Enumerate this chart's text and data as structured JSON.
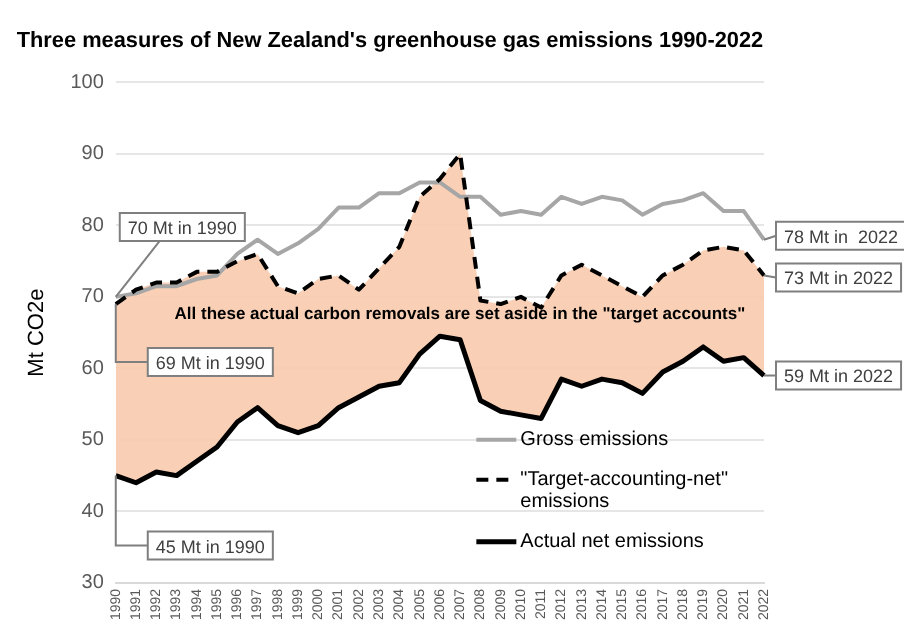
{
  "chart_data": {
    "type": "line",
    "title": "Three measures of New Zealand's greenhouse gas emissions 1990-2022",
    "ylabel": "Mt CO2e",
    "categories": [
      "1990",
      "1991",
      "1992",
      "1993",
      "1994",
      "1995",
      "1996",
      "1997",
      "1998",
      "1999",
      "2000",
      "2001",
      "2002",
      "2003",
      "2004",
      "2005",
      "2006",
      "2007",
      "2008",
      "2009",
      "2010",
      "2011",
      "2012",
      "2013",
      "2014",
      "2015",
      "2016",
      "2017",
      "2018",
      "2019",
      "2020",
      "2021",
      "2022"
    ],
    "series": [
      {
        "name": "Gross emissions",
        "color": "#a6a6a6",
        "line_style": "solid",
        "values": [
          70,
          70.5,
          71.5,
          71.5,
          72.5,
          73,
          76,
          78,
          76,
          77.5,
          79.5,
          82.5,
          82.5,
          84.5,
          84.5,
          86,
          86,
          84,
          84,
          81.5,
          82,
          81.5,
          84,
          83,
          84,
          83.5,
          81.5,
          83,
          83.5,
          84.5,
          82,
          82,
          78
        ]
      },
      {
        "name": "\"Target-accounting-net\" emissions",
        "color": "#000000",
        "line_style": "dashed",
        "values": [
          69,
          71,
          72,
          72,
          73.5,
          73.5,
          75,
          76,
          71.5,
          70.5,
          72.5,
          73,
          71,
          74,
          77,
          84,
          86.5,
          90,
          69.5,
          69,
          70,
          68.5,
          73,
          74.5,
          73,
          71.5,
          70,
          73,
          74.5,
          76.5,
          77,
          76.5,
          73
        ],
        "lower": [
          45,
          44,
          45.5,
          45,
          47,
          49,
          52.5,
          54.5,
          52,
          51,
          52,
          54.5,
          56,
          57.5,
          58,
          62,
          64.5,
          64,
          55.5,
          54,
          53.5,
          53,
          58.5,
          57.5,
          58.5,
          58,
          56.5,
          59.5,
          61,
          63,
          61,
          61.5,
          59
        ],
        "upper": [
          69,
          71,
          72,
          72,
          73.5,
          73.5,
          75,
          76,
          71.5,
          70.5,
          72.5,
          73,
          71,
          74,
          77,
          84,
          86.5,
          90,
          69.5,
          69,
          70,
          68.5,
          73,
          74.5,
          73,
          71.5,
          70,
          73,
          74.5,
          76.5,
          77,
          76.5,
          73
        ]
      },
      {
        "name": "Actual net emissions",
        "color": "#000000",
        "line_style": "solid",
        "values": [
          45,
          44,
          45.5,
          45,
          47,
          49,
          52.5,
          54.5,
          52,
          51,
          52,
          54.5,
          56,
          57.5,
          58,
          62,
          64.5,
          64,
          55.5,
          54,
          53.5,
          53,
          58.5,
          57.5,
          58.5,
          58,
          56.5,
          59.5,
          61,
          63,
          61,
          61.5,
          59
        ]
      }
    ],
    "ylim": [
      30,
      100
    ],
    "yticks": [
      30,
      40,
      50,
      60,
      70,
      80,
      90,
      100
    ],
    "grid": "y",
    "legend": "bottom right",
    "marker": "none",
    "annotations": [
      {
        "text": "70 Mt in 1990",
        "x": "1990",
        "y": 70
      },
      {
        "text": "69 Mt in 1990",
        "x": "1990",
        "y": 69
      },
      {
        "text": "45 Mt in 1990",
        "x": "1990",
        "y": 45
      },
      {
        "text": "78 Mt in  2022",
        "x": "2022",
        "y": 78
      },
      {
        "text": "73 Mt in 2022",
        "x": "2022",
        "y": 73
      },
      {
        "text": "59 Mt in 2022",
        "x": "2022",
        "y": 59
      },
      "All these actual carbon removals are set aside in the \"target accounts\""
    ]
  }
}
